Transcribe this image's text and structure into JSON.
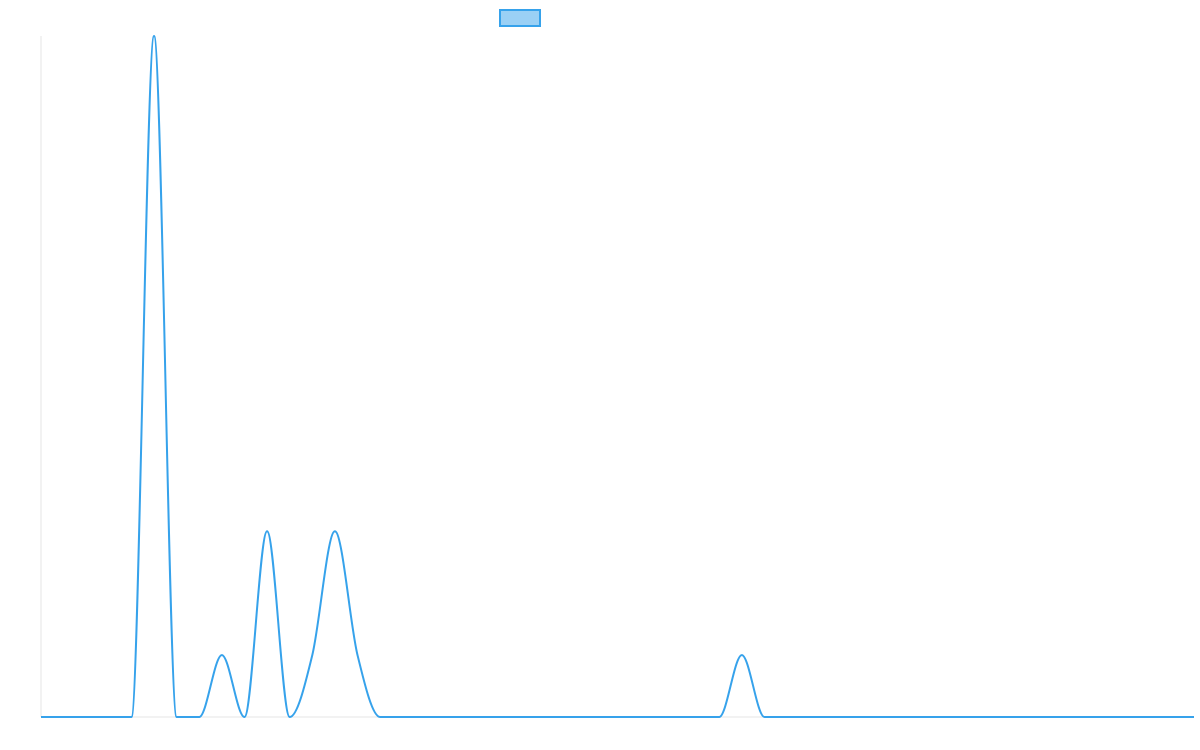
{
  "chart_data": {
    "type": "line",
    "title": "",
    "xlabel": "",
    "ylabel": "",
    "grid": false,
    "legend_position": "top-center",
    "x": [
      0,
      4,
      5,
      6,
      7,
      8,
      9,
      10,
      11,
      12,
      13,
      14,
      15,
      16,
      17,
      18,
      19,
      20,
      21,
      22,
      23,
      24,
      25,
      26,
      27,
      28,
      29,
      30,
      31,
      32,
      33,
      34,
      35,
      36,
      37,
      38,
      39,
      40,
      41,
      42,
      43,
      44,
      45,
      46,
      47,
      48,
      49,
      50,
      51
    ],
    "ylim": [
      0,
      11
    ],
    "series": [
      {
        "name": "",
        "color": "#36a2eb",
        "fill": "#9ad0f5",
        "values": [
          0,
          0,
          11,
          0,
          0,
          1,
          0,
          3,
          0,
          1,
          3,
          1,
          0,
          0,
          0,
          0,
          0,
          0,
          0,
          0,
          0,
          0,
          0,
          0,
          0,
          0,
          0,
          0,
          1,
          0,
          0,
          0,
          0,
          0,
          0,
          0,
          0,
          0,
          0,
          0,
          0,
          0,
          0,
          0,
          0,
          0,
          0,
          0,
          0
        ]
      }
    ]
  }
}
